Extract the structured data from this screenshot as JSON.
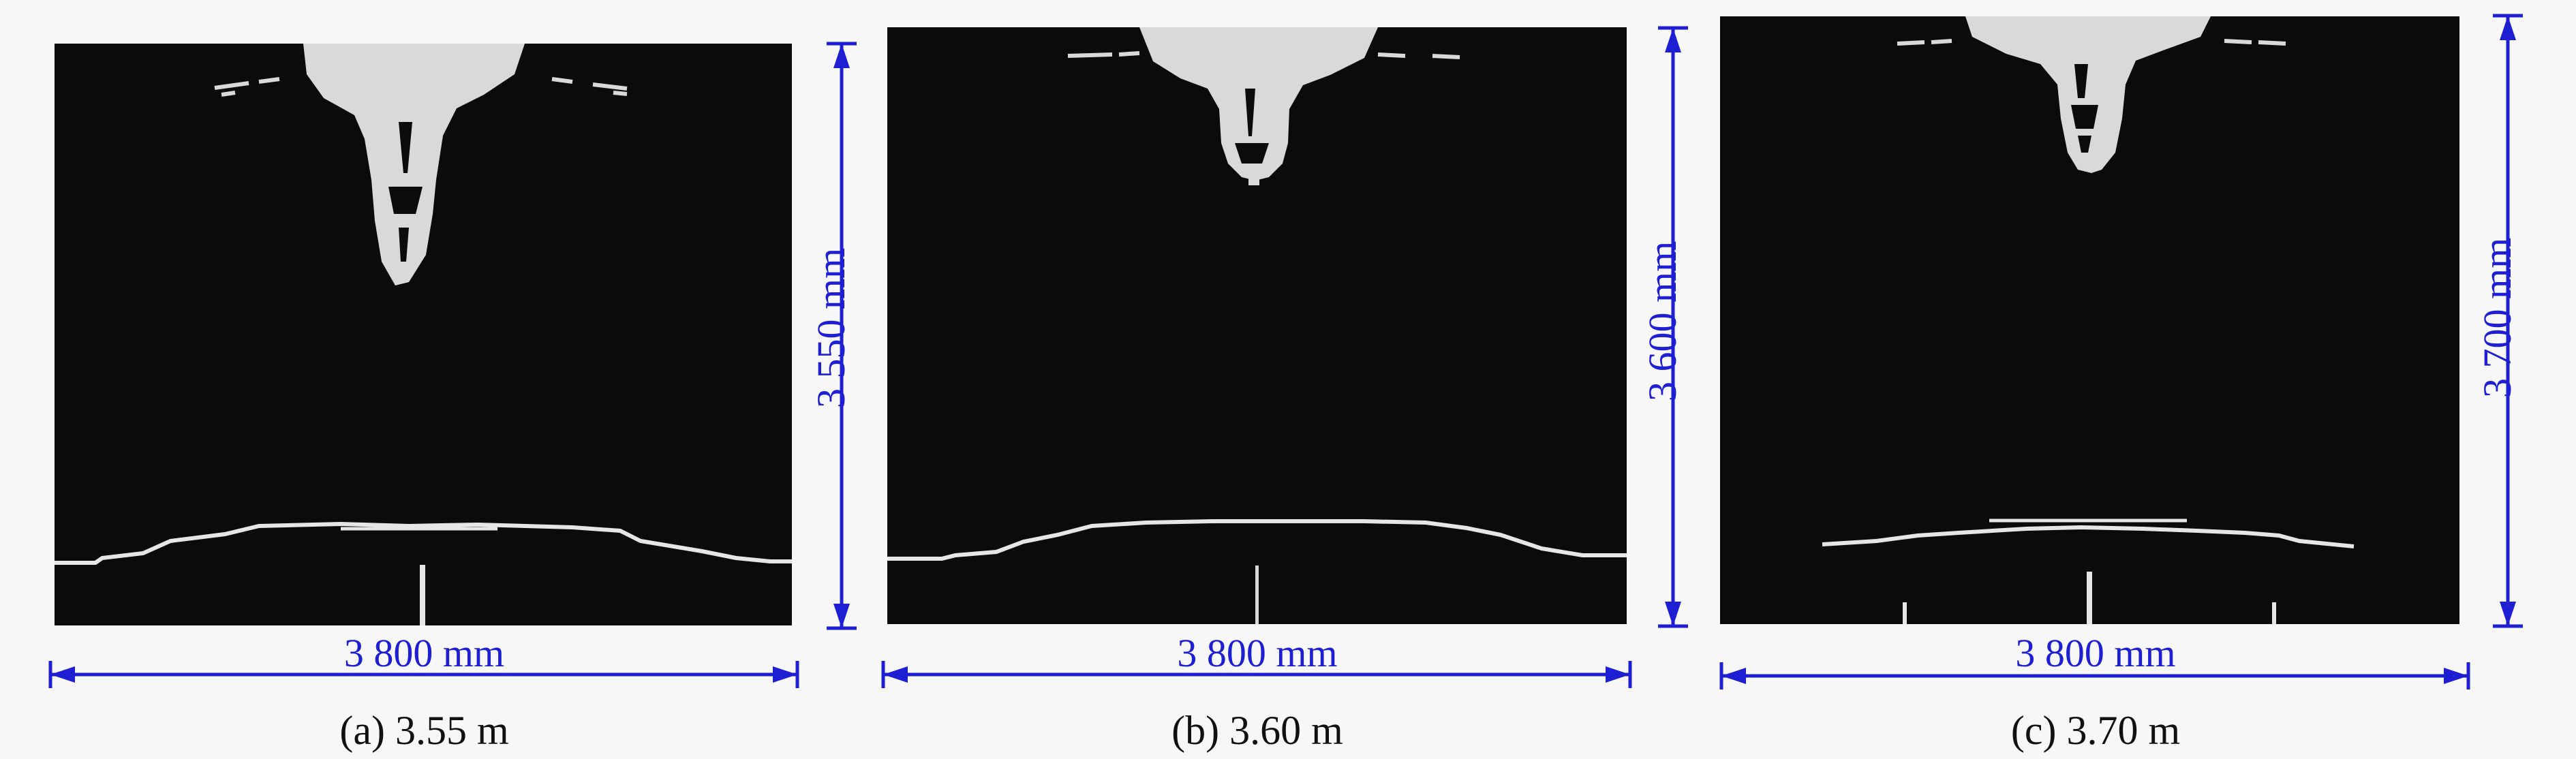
{
  "figure": {
    "panels": [
      {
        "caption": "(a) 3.55 m",
        "width_label": "3 800 mm",
        "height_label": "3 550 mm",
        "height_m": 3.55
      },
      {
        "caption": "(b) 3.60 m",
        "width_label": "3 800 mm",
        "height_label": "3 600 mm",
        "height_m": 3.6
      },
      {
        "caption": "(c) 3.70 m",
        "width_label": "3 800 mm",
        "height_label": "3 700 mm",
        "height_m": 3.7
      }
    ]
  },
  "colors": {
    "background": "#f7f7f7",
    "sim_fill": "#0b0b0b",
    "damage": "#d9d9d9",
    "dimension": "#1e1ed2",
    "caption": "#111111"
  }
}
